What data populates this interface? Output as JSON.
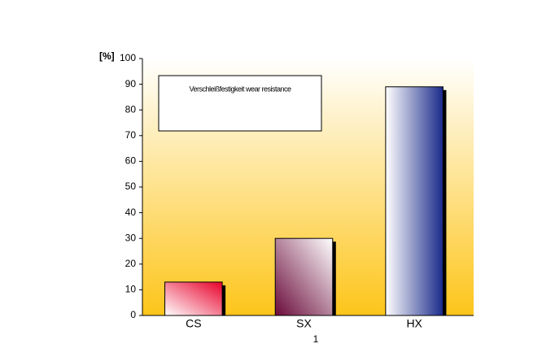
{
  "chart_data": {
    "type": "bar",
    "y_label": "[%]",
    "x_label": "1",
    "legend_text": "Verschleißfestigkeit wear resistance",
    "categories": [
      "CS",
      "SX",
      "HX"
    ],
    "values": [
      13,
      30,
      89
    ],
    "colors": [
      "#e8002a",
      "#6a0a3a",
      "#1a2a8a"
    ],
    "ylim": [
      0,
      100
    ],
    "yticks": [
      0,
      10,
      20,
      30,
      40,
      50,
      60,
      70,
      80,
      90,
      100
    ]
  }
}
